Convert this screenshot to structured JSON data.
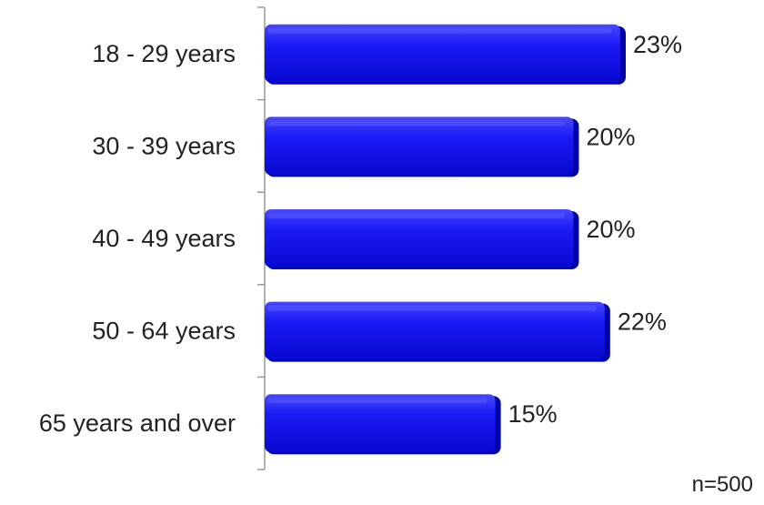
{
  "chart_data": {
    "type": "bar",
    "orientation": "horizontal",
    "categories": [
      "18 - 29 years",
      "30 - 39 years",
      "40 - 49 years",
      "50 - 64 years",
      "65 years and over"
    ],
    "values": [
      23,
      20,
      20,
      22,
      15
    ],
    "value_labels": [
      "23%",
      "20%",
      "20%",
      "22%",
      "15%"
    ],
    "unit": "%",
    "title": "",
    "xlabel": "",
    "ylabel": "",
    "xlim": [
      0,
      23
    ],
    "grid": false,
    "legend": "none",
    "bar_color": "#1010ee",
    "bar_highlight": "#5a5aff",
    "bar_shadow": "#0000a8"
  },
  "note": "n=500"
}
